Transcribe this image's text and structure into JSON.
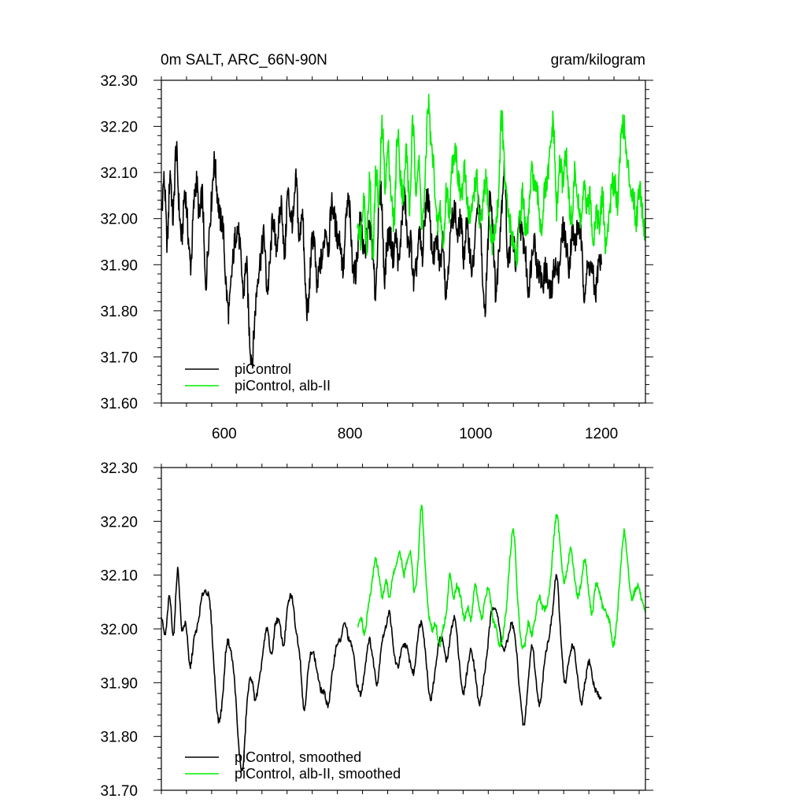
{
  "chart_data": [
    {
      "type": "line",
      "title": "0m SALT, ARC_66N-90N",
      "units": "gram/kilogram",
      "xlim": [
        500,
        1270
      ],
      "ylim": [
        31.6,
        32.3
      ],
      "x_ticks": [
        600,
        800,
        1000,
        1200
      ],
      "x_tick_labels": [
        "600",
        "800",
        "1000",
        "1200"
      ],
      "y_ticks": [
        31.6,
        31.7,
        31.8,
        31.9,
        32.0,
        32.1,
        32.2,
        32.3
      ],
      "y_tick_labels": [
        "31.60",
        "31.70",
        "31.80",
        "31.90",
        "32.00",
        "32.10",
        "32.20",
        "32.30"
      ],
      "legend_position": "bottom-left",
      "series": [
        {
          "name": "piControl",
          "color": "#000000",
          "x_start": 500,
          "x_end": 1200,
          "knots": [
            32.02,
            32.08,
            31.95,
            32.1,
            32.0,
            32.15,
            32.03,
            31.96,
            32.06,
            31.98,
            31.9,
            32.02,
            32.08,
            32.0,
            32.05,
            31.86,
            31.95,
            32.03,
            32.12,
            32.06,
            32.0,
            31.98,
            31.86,
            31.8,
            31.88,
            31.95,
            31.98,
            31.92,
            31.84,
            31.9,
            31.75,
            31.7,
            31.8,
            31.88,
            31.92,
            31.96,
            31.85,
            31.9,
            32.0,
            31.94,
            31.98,
            32.03,
            31.92,
            32.05,
            32.01,
            32.0,
            32.08,
            31.95,
            32.02,
            31.86,
            31.8,
            31.92,
            31.96,
            31.85,
            31.9,
            31.92,
            31.98,
            31.94,
            32.03,
            32.0,
            31.96,
            31.95,
            31.89,
            32.0,
            32.03,
            31.92,
            31.88,
            31.94,
            32.0,
            31.92,
            31.95,
            31.98,
            31.93,
            31.84,
            32.0,
            32.05,
            31.88,
            31.95,
            31.96,
            31.92,
            31.96,
            31.9,
            32.0,
            32.04,
            31.94,
            31.95,
            31.86,
            31.9,
            31.96,
            31.92,
            32.02,
            32.04,
            31.95,
            31.92,
            31.95,
            31.9,
            31.96,
            31.84,
            31.92,
            31.99,
            32.02,
            31.96,
            32.0,
            31.92,
            31.98,
            31.94,
            31.89,
            31.96,
            32.03,
            31.95,
            31.8,
            31.89,
            32.05,
            31.98,
            31.84,
            31.93,
            32.03,
            32.1,
            31.92,
            31.94,
            31.95,
            31.9,
            31.99,
            31.96,
            31.93,
            31.85,
            31.9,
            31.96,
            31.9,
            31.88,
            31.86,
            31.89,
            31.85,
            31.84,
            31.9,
            31.88,
            31.92,
            31.98,
            31.94,
            31.9,
            31.97,
            31.95,
            31.98,
            31.96,
            31.85,
            31.88,
            31.9,
            31.88,
            31.84,
            31.9,
            31.9
          ]
        },
        {
          "name": "piControl, alb-II",
          "color": "#00ee00",
          "x_start": 812,
          "x_end": 1270,
          "knots": [
            32.0,
            31.96,
            32.05,
            31.95,
            32.08,
            31.92,
            32.1,
            32.03,
            32.2,
            32.08,
            32.15,
            32.05,
            32.0,
            32.18,
            32.1,
            32.05,
            32.15,
            32.02,
            32.2,
            32.08,
            32.12,
            32.0,
            32.06,
            32.25,
            32.16,
            32.1,
            31.98,
            32.02,
            31.94,
            32.06,
            32.02,
            32.12,
            32.15,
            32.08,
            32.05,
            32.1,
            32.03,
            32.0,
            32.06,
            32.08,
            31.98,
            32.03,
            32.08,
            32.0,
            31.95,
            31.98,
            32.05,
            32.22,
            32.1,
            32.02,
            31.98,
            31.95,
            31.92,
            32.0,
            32.05,
            31.96,
            32.02,
            32.1,
            32.06,
            32.04,
            31.98,
            32.05,
            32.08,
            32.15,
            32.2,
            32.02,
            32.12,
            32.08,
            32.14,
            32.04,
            32.0,
            32.1,
            32.03,
            32.0,
            32.06,
            32.02,
            32.04,
            31.96,
            32.02,
            31.98,
            32.05,
            31.94,
            32.0,
            32.06,
            32.08,
            32.04,
            32.18,
            32.2,
            32.12,
            32.08,
            32.05,
            32.0,
            32.07,
            32.02,
            31.96
          ]
        }
      ],
      "legend": [
        "piControl",
        "piControl, alb-II"
      ]
    },
    {
      "type": "line",
      "title": "",
      "xlim": [
        500,
        1270
      ],
      "ylim": [
        31.7,
        32.3
      ],
      "x_ticks": [
        600,
        800,
        1000,
        1200
      ],
      "y_ticks": [
        31.7,
        31.8,
        31.9,
        32.0,
        32.1,
        32.2,
        32.3
      ],
      "y_tick_labels": [
        "31.70",
        "31.80",
        "31.90",
        "32.00",
        "32.10",
        "32.20",
        "32.30"
      ],
      "legend_position": "bottom-left",
      "series": [
        {
          "name": "piControl, smoothed",
          "color": "#000000",
          "x_start": 500,
          "x_end": 1200,
          "knots": [
            32.02,
            31.99,
            32.06,
            31.99,
            32.11,
            32.0,
            32.01,
            31.93,
            31.98,
            32.01,
            32.06,
            32.07,
            32.04,
            31.92,
            31.83,
            31.87,
            31.97,
            31.96,
            31.9,
            31.78,
            31.74,
            31.86,
            31.91,
            31.87,
            31.9,
            31.96,
            32.0,
            31.95,
            32.01,
            32.01,
            31.97,
            32.04,
            32.06,
            32.0,
            31.95,
            31.85,
            31.92,
            31.96,
            31.93,
            31.89,
            31.88,
            31.86,
            31.92,
            31.97,
            31.98,
            32.01,
            31.98,
            31.96,
            31.9,
            31.88,
            31.93,
            31.98,
            31.94,
            31.9,
            31.97,
            32.0,
            32.03,
            31.96,
            31.93,
            31.96,
            31.97,
            31.94,
            31.92,
            31.99,
            32.01,
            31.94,
            31.87,
            31.91,
            31.97,
            31.98,
            31.94,
            31.99,
            32.02,
            31.95,
            31.88,
            31.92,
            31.96,
            31.92,
            31.86,
            31.9,
            31.96,
            32.03,
            32.04,
            32.0,
            31.96,
            31.98,
            32.01,
            31.97,
            31.88,
            31.82,
            31.9,
            31.97,
            31.9,
            31.86,
            31.94,
            31.98,
            32.03,
            32.1,
            31.99,
            31.9,
            31.94,
            31.97,
            31.92,
            31.86,
            31.9,
            31.94,
            31.9,
            31.88,
            31.87
          ]
        },
        {
          "name": "piControl, alb-II, smoothed",
          "color": "#00ee00",
          "x_start": 812,
          "x_end": 1270,
          "knots": [
            32.0,
            32.02,
            31.99,
            32.04,
            32.08,
            32.13,
            32.1,
            32.06,
            32.09,
            32.06,
            32.1,
            32.12,
            32.14,
            32.1,
            32.13,
            32.14,
            32.07,
            32.12,
            32.23,
            32.12,
            32.03,
            32.0,
            32.01,
            31.97,
            32.0,
            32.03,
            32.1,
            32.06,
            32.08,
            32.06,
            32.02,
            32.04,
            32.02,
            32.08,
            32.05,
            32.02,
            32.06,
            32.07,
            32.02,
            32.0,
            31.97,
            31.99,
            32.05,
            32.14,
            32.18,
            32.06,
            31.98,
            31.97,
            32.01,
            31.99,
            32.02,
            32.06,
            32.04,
            32.04,
            32.07,
            32.15,
            32.21,
            32.16,
            32.09,
            32.11,
            32.15,
            32.1,
            32.06,
            32.09,
            32.13,
            32.07,
            32.03,
            32.08,
            32.07,
            32.04,
            32.03,
            32.01,
            31.97,
            32.02,
            32.11,
            32.18,
            32.12,
            32.06,
            32.07,
            32.08,
            32.05,
            32.03
          ]
        }
      ],
      "legend": [
        "piControl, smoothed",
        "piControl, alb-II, smoothed"
      ]
    }
  ]
}
